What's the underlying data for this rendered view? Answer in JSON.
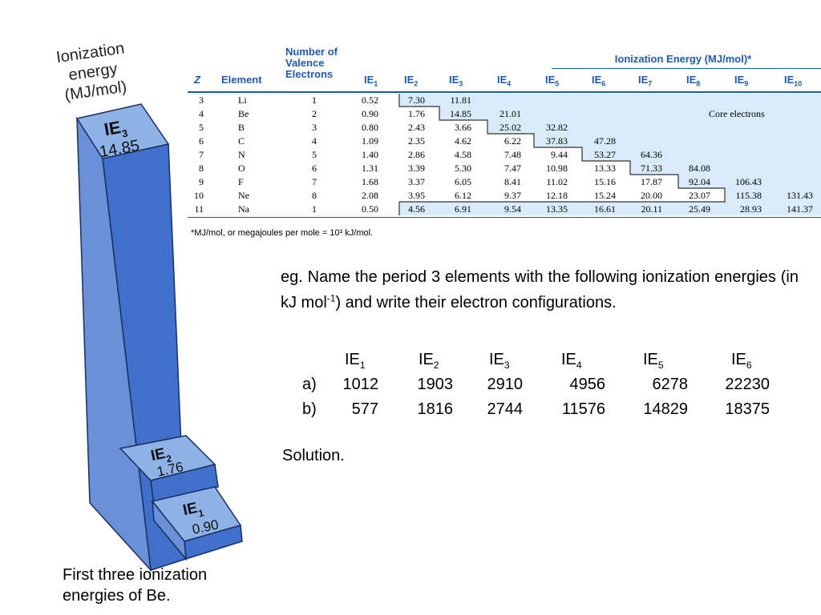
{
  "figure": {
    "title_lines": [
      "Ionization",
      "energy",
      "(MJ/mol)"
    ],
    "bars": [
      {
        "label": "IE",
        "sub": "3",
        "value": "14.85"
      },
      {
        "label": "IE",
        "sub": "2",
        "value": "1.76"
      },
      {
        "label": "IE",
        "sub": "1",
        "value": "0.90"
      }
    ],
    "caption_lines": [
      "First three ionization",
      "energies of Be."
    ]
  },
  "table": {
    "super_header": "Ionization Energy (MJ/mol)*",
    "headers": {
      "z": "Z",
      "element": "Element",
      "valence": [
        "Number of",
        "Valence",
        "Electrons"
      ],
      "ie": [
        "IE|1",
        "IE|2",
        "IE|3",
        "IE|4",
        "IE|5",
        "IE|6",
        "IE|7",
        "IE|8",
        "IE|9",
        "IE|10"
      ]
    },
    "rows": [
      {
        "z": "3",
        "el": "Li",
        "val": "1",
        "ie": [
          "0.52",
          "7.30",
          "11.81"
        ]
      },
      {
        "z": "4",
        "el": "Be",
        "val": "2",
        "ie": [
          "0.90",
          "1.76",
          "14.85",
          "21.01"
        ]
      },
      {
        "z": "5",
        "el": "B",
        "val": "3",
        "ie": [
          "0.80",
          "2.43",
          "3.66",
          "25.02",
          "32.82"
        ]
      },
      {
        "z": "6",
        "el": "C",
        "val": "4",
        "ie": [
          "1.09",
          "2.35",
          "4.62",
          "6.22",
          "37.83",
          "47.28"
        ]
      },
      {
        "z": "7",
        "el": "N",
        "val": "5",
        "ie": [
          "1.40",
          "2.86",
          "4.58",
          "7.48",
          "9.44",
          "53.27",
          "64.36"
        ]
      },
      {
        "z": "8",
        "el": "O",
        "val": "6",
        "ie": [
          "1.31",
          "3.39",
          "5.30",
          "7.47",
          "10.98",
          "13.33",
          "71.33",
          "84.08"
        ]
      },
      {
        "z": "9",
        "el": "F",
        "val": "7",
        "ie": [
          "1.68",
          "3.37",
          "6.05",
          "8.41",
          "11.02",
          "15.16",
          "17.87",
          "92.04",
          "106.43"
        ]
      },
      {
        "z": "10",
        "el": "Ne",
        "val": "8",
        "ie": [
          "2.08",
          "3.95",
          "6.12",
          "9.37",
          "12.18",
          "15.24",
          "20.00",
          "23.07",
          "115.38",
          "131.43"
        ]
      },
      {
        "z": "11",
        "el": "Na",
        "val": "1",
        "ie": [
          "0.50",
          "4.56",
          "6.91",
          "9.54",
          "13.35",
          "16.61",
          "20.11",
          "25.49",
          "28.93",
          "141.37"
        ]
      }
    ],
    "core_label": "Core electrons",
    "footnote": "*MJ/mol, or megajoules per mole = 10³ kJ/mol."
  },
  "question": {
    "intro_a": "eg.   Name the period 3 elements with the following ionization energies (in kJ mol",
    "intro_sup": "-1",
    "intro_b": ") and write their electron configurations.",
    "headers": [
      "IE|1",
      "IE|2",
      "IE|3",
      "IE|4",
      "IE|5",
      "IE|6"
    ],
    "rows": [
      {
        "label": "a)",
        "values": [
          "1012",
          "1903",
          "2910",
          "4956",
          "6278",
          "22230"
        ]
      },
      {
        "label": "b)",
        "values": [
          "577",
          "1816",
          "2744",
          "11576",
          "14829",
          "18375"
        ]
      }
    ],
    "solution": "Solution."
  }
}
